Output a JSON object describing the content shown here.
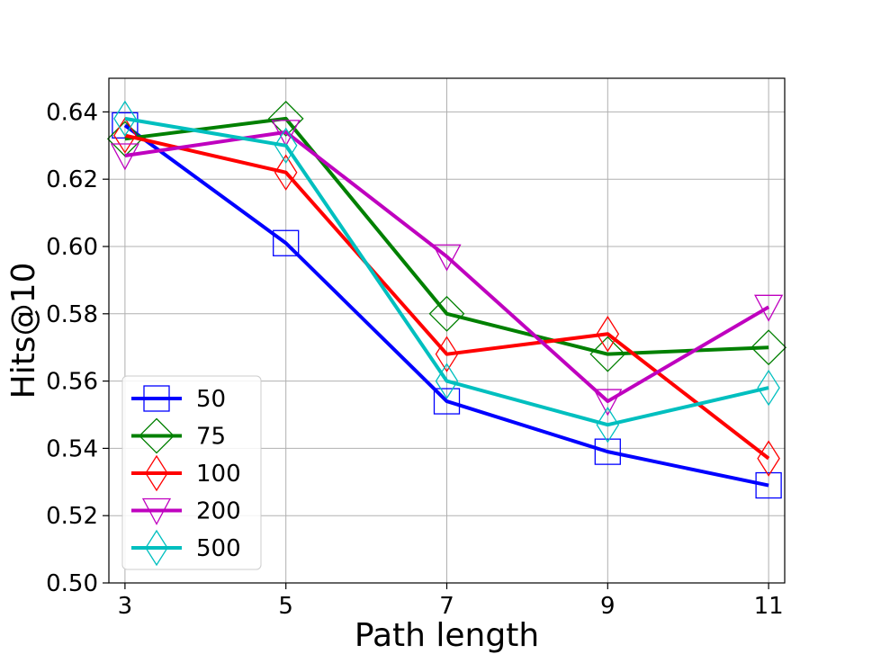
{
  "chart_data": {
    "type": "line",
    "title": "",
    "xlabel": "Path length",
    "ylabel": "Hits@10",
    "x": [
      3,
      5,
      7,
      9,
      11
    ],
    "xticks": [
      "3",
      "5",
      "7",
      "9",
      "11"
    ],
    "yticks": [
      "0.50",
      "0.52",
      "0.54",
      "0.56",
      "0.58",
      "0.60",
      "0.62",
      "0.64"
    ],
    "xlim": [
      2.8,
      11.2
    ],
    "ylim": [
      0.5,
      0.65
    ],
    "grid": true,
    "legend_position": "lower-left",
    "series": [
      {
        "name": "50",
        "color": "#0000ff",
        "marker": "square",
        "values": [
          0.636,
          0.601,
          0.554,
          0.539,
          0.529
        ]
      },
      {
        "name": "75",
        "color": "#008000",
        "marker": "diamond",
        "values": [
          0.632,
          0.638,
          0.58,
          0.568,
          0.57
        ]
      },
      {
        "name": "100",
        "color": "#ff0000",
        "marker": "thin-diamond",
        "values": [
          0.633,
          0.622,
          0.568,
          0.574,
          0.537
        ]
      },
      {
        "name": "200",
        "color": "#bf00bf",
        "marker": "triangle-down",
        "values": [
          0.627,
          0.634,
          0.597,
          0.554,
          0.582
        ]
      },
      {
        "name": "500",
        "color": "#00bfbf",
        "marker": "thin-diamond",
        "values": [
          0.638,
          0.63,
          0.56,
          0.547,
          0.558
        ]
      }
    ]
  }
}
